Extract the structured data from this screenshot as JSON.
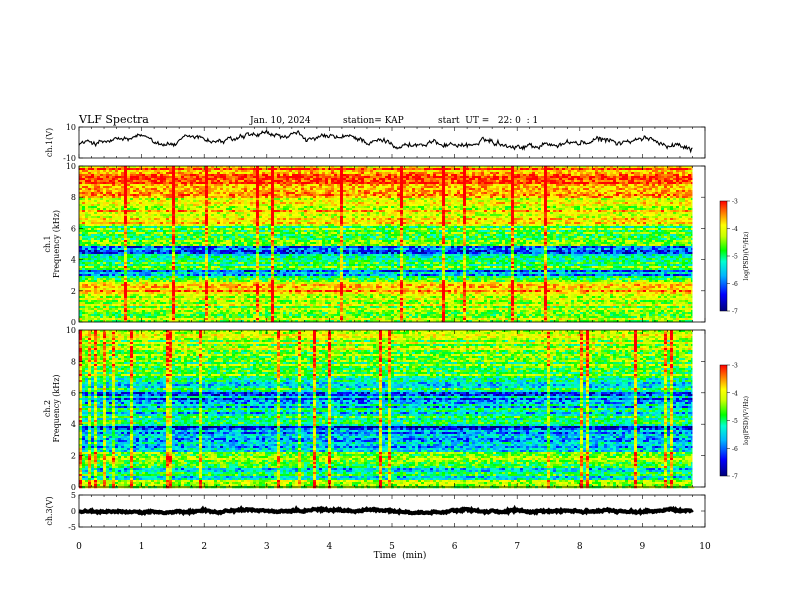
{
  "header": {
    "title": "VLF Spectra",
    "date": "Jan. 10, 2024",
    "station": "station= KAP",
    "start": "start  UT =   22: 0  : 1"
  },
  "chart_data": [
    {
      "name": "ch1-waveform",
      "type": "line",
      "ylabel": "ch.1(V)",
      "ylim": [
        -10,
        10
      ],
      "ytick_labels": [
        "10",
        "-10"
      ],
      "xlim": [
        0,
        10
      ],
      "x_end": 9.8,
      "series": [
        {
          "color": "#000000",
          "baseline": 0,
          "envelope": 4
        }
      ]
    },
    {
      "name": "ch1-spectrogram",
      "type": "heatmap",
      "ylabel": "ch.1\nFrequency  (kHz)",
      "ylim": [
        0,
        10
      ],
      "ytick_labels": [
        "0",
        "2",
        "4",
        "6",
        "8",
        "10"
      ],
      "xlim": [
        0,
        10
      ],
      "x_end": 9.8,
      "colorbar": {
        "ticks": [
          "-3",
          "-4",
          "-5",
          "-6",
          "-7"
        ],
        "label": "log(PSD)(V²/Hz)",
        "range": [
          -7,
          -3
        ]
      },
      "bands": [
        {
          "from": 0,
          "to": 0.5,
          "level": -4.6
        },
        {
          "from": 0.5,
          "to": 1.0,
          "level": -5.0
        },
        {
          "from": 1.0,
          "to": 2.0,
          "level": -4.7
        },
        {
          "from": 2.0,
          "to": 2.6,
          "level": -4.2
        },
        {
          "from": 2.6,
          "to": 3.0,
          "level": -5.4
        },
        {
          "from": 3.0,
          "to": 3.4,
          "level": -6.1
        },
        {
          "from": 3.4,
          "to": 3.9,
          "level": -5.3
        },
        {
          "from": 3.9,
          "to": 4.3,
          "level": -5.6
        },
        {
          "from": 4.3,
          "to": 5.0,
          "level": -6.1
        },
        {
          "from": 5.0,
          "to": 6.2,
          "level": -5.2
        },
        {
          "from": 6.2,
          "to": 7.0,
          "level": -4.5
        },
        {
          "from": 7.0,
          "to": 8.2,
          "level": -4.4
        },
        {
          "from": 8.2,
          "to": 10.0,
          "level": -4.0
        }
      ]
    },
    {
      "name": "ch2-spectrogram",
      "type": "heatmap",
      "ylabel": "ch.2\nFrequency  (kHz)",
      "ylim": [
        0,
        10
      ],
      "ytick_labels": [
        "0",
        "2",
        "4",
        "6",
        "8",
        "10"
      ],
      "xlim": [
        0,
        10
      ],
      "x_end": 9.8,
      "colorbar": {
        "ticks": [
          "-3",
          "-4",
          "-5",
          "-6",
          "-7"
        ],
        "label": "log(PSD)(V²/Hz)",
        "range": [
          -7,
          -3
        ]
      },
      "bands": [
        {
          "from": 0,
          "to": 0.5,
          "level": -4.8
        },
        {
          "from": 0.5,
          "to": 1.5,
          "level": -5.6
        },
        {
          "from": 1.5,
          "to": 2.3,
          "level": -5.0
        },
        {
          "from": 2.3,
          "to": 3.2,
          "level": -5.9
        },
        {
          "from": 3.2,
          "to": 3.9,
          "level": -6.3
        },
        {
          "from": 3.9,
          "to": 4.6,
          "level": -5.4
        },
        {
          "from": 4.6,
          "to": 5.3,
          "level": -5.8
        },
        {
          "from": 5.3,
          "to": 6.1,
          "level": -6.1
        },
        {
          "from": 6.1,
          "to": 7.0,
          "level": -5.5
        },
        {
          "from": 7.0,
          "to": 8.0,
          "level": -5.0
        },
        {
          "from": 8.0,
          "to": 10.0,
          "level": -4.8
        }
      ]
    },
    {
      "name": "ch3-waveform",
      "type": "line",
      "ylabel": "ch.3(V)",
      "ylim": [
        -5,
        5
      ],
      "ytick_labels": [
        "5",
        "0",
        "-5"
      ],
      "xlim": [
        0,
        10
      ],
      "x_end": 9.8,
      "series": [
        {
          "color": "#000000",
          "baseline": 0,
          "envelope": 0.5
        }
      ]
    }
  ],
  "x_axis": {
    "xlabel": "Time  (min)",
    "tick_labels": [
      "0",
      "1",
      "2",
      "3",
      "4",
      "5",
      "6",
      "7",
      "8",
      "9",
      "10"
    ]
  },
  "colors": {
    "colormap": [
      "#00007a",
      "#0000ff",
      "#00b4ff",
      "#00ffd0",
      "#00ff00",
      "#c8ff00",
      "#ffff00",
      "#ff8c00",
      "#ff0000",
      "#ff0000"
    ]
  }
}
